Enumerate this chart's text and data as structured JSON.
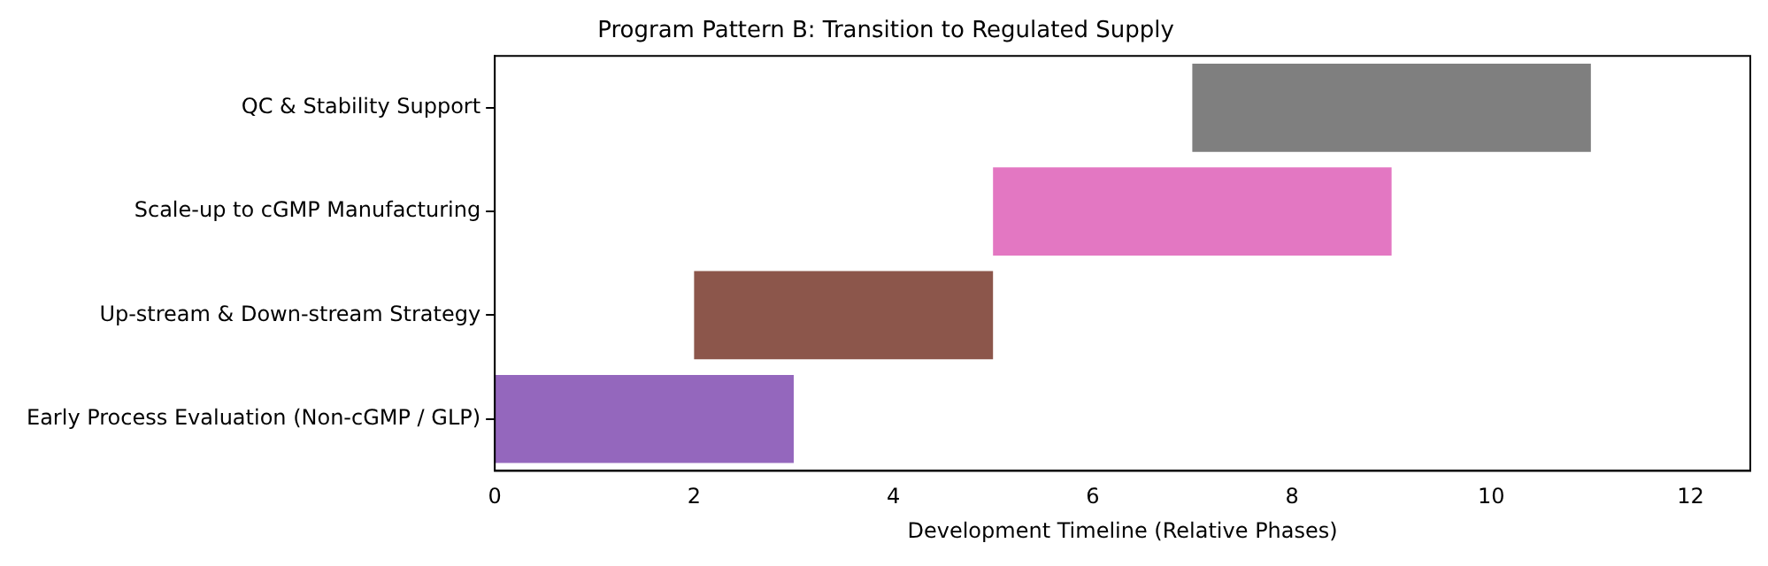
{
  "chart_data": {
    "type": "bar",
    "orientation": "horizontal",
    "title": "Program Pattern B: Transition to Regulated Supply",
    "xlabel": "Development Timeline (Relative Phases)",
    "categories": [
      "QC & Stability Support",
      "Scale-up to cGMP Manufacturing",
      "Up-stream & Down-stream Strategy",
      "Early Process Evaluation (Non-cGMP / GLP)"
    ],
    "base": [
      7,
      5,
      2,
      0
    ],
    "values": [
      4,
      4,
      3,
      3
    ],
    "colors": [
      "#7f7f7f",
      "#e377c2",
      "#8c564b",
      "#9467bd"
    ],
    "xlim": [
      0,
      12.6
    ],
    "xticks": [
      0,
      2,
      4,
      6,
      8,
      10,
      12
    ],
    "grid": false,
    "legend": false
  }
}
